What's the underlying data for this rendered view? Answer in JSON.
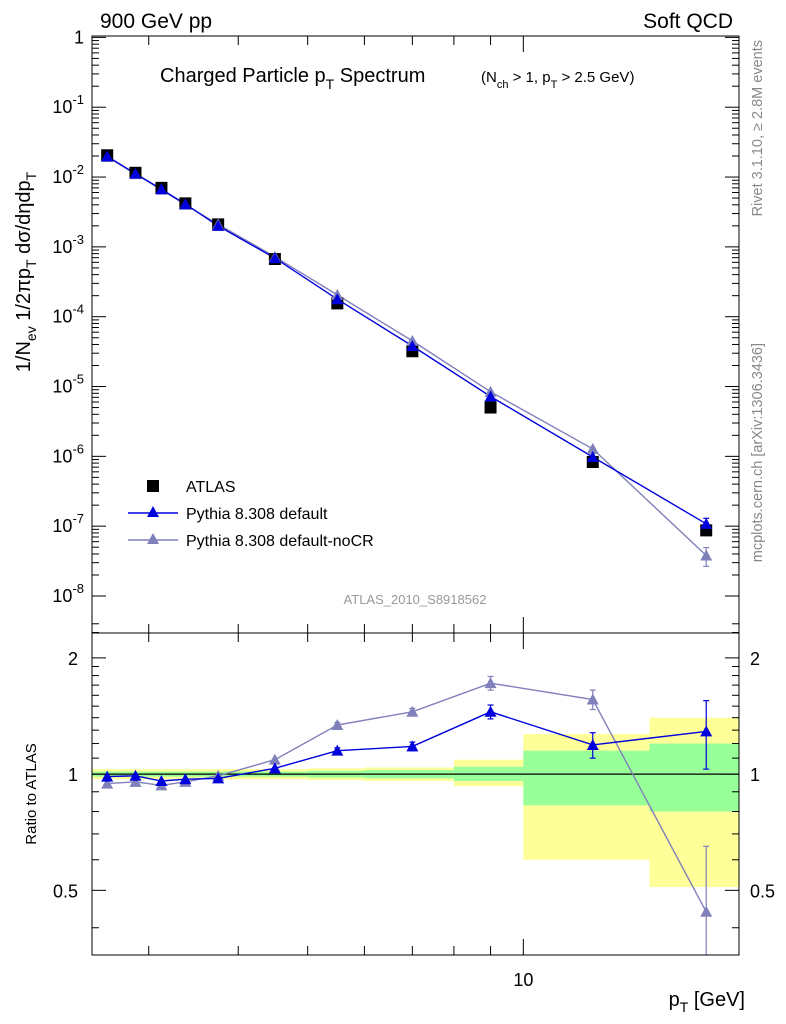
{
  "header": {
    "energy_label": "900 GeV pp",
    "category_label": "Soft QCD"
  },
  "side_labels": {
    "rivet": "Rivet 3.1.10, ≥ 2.8M events",
    "source": "mcplots.cern.ch [arXiv:1306.3436]"
  },
  "chart_data": [
    {
      "type": "scatter",
      "panel": "main",
      "title_main": "Charged Particle p",
      "title_sub": "T",
      "title_tail": " Spectrum",
      "title_cuts": "(N_ch > 1, p_T > 2.5 GeV)",
      "ylabel": "1/N_ev 1/2πp_T dσ/dηdp_T",
      "xlabel": "p_T [GeV]",
      "x_scale": "log",
      "y_scale": "log",
      "xlim": [
        2.5,
        20.0
      ],
      "ylim": [
        3e-09,
        5.0
      ],
      "y_tick_labels": [
        "10^-8",
        "10^-7",
        "10^-6",
        "10^-5",
        "10^-4",
        "10^-3",
        "10^-2",
        "10^-1",
        "1"
      ],
      "x_tick_labels": [
        "10"
      ],
      "analysis_tag": "ATLAS_2010_S8918562",
      "legend_position": "bottom-left",
      "x": [
        2.625,
        2.875,
        3.125,
        3.375,
        3.75,
        4.5,
        5.5,
        7.0,
        9.0,
        12.5,
        18.0
      ],
      "series": [
        {
          "name": "ATLAS",
          "color": "#000000",
          "marker": "square",
          "values": [
            0.0205,
            0.0115,
            0.007,
            0.0042,
            0.0021,
            0.00067,
            0.000155,
            3.2e-05,
            5e-06,
            8.3e-07,
            8.7e-08
          ]
        },
        {
          "name": "Pythia 8.308 default",
          "color": "#0000dd",
          "marker": "triangle",
          "values": [
            0.0198,
            0.0112,
            0.0067,
            0.0041,
            0.002,
            0.00069,
            0.000178,
            3.8e-05,
            7.2e-06,
            9.8e-07,
            1.08e-07
          ]
        },
        {
          "name": "Pythia 8.308 default-noCR",
          "color": "#8080bb",
          "marker": "triangle",
          "values": [
            0.0194,
            0.011,
            0.0066,
            0.004,
            0.0021,
            0.00072,
            0.000205,
            4.5e-05,
            8.4e-06,
            1.28e-06,
            3.8e-08
          ]
        }
      ]
    },
    {
      "type": "line",
      "panel": "ratio",
      "ylabel": "Ratio to ATLAS",
      "x_scale": "log",
      "xlim": [
        2.5,
        20.0
      ],
      "ylim": [
        0.34,
        2.32
      ],
      "y_tick_labels": [
        "0.5",
        "1",
        "2"
      ],
      "x_tick_labels": [
        "10"
      ],
      "x_edges": [
        2.5,
        2.75,
        3.0,
        3.25,
        3.5,
        4.0,
        5.0,
        6.0,
        8.0,
        10.0,
        15.0,
        20.0
      ],
      "uncertainty_band_inner_color": "#99ff99",
      "uncertainty_band_outer_color": "#ffff99",
      "band_inner": [
        [
          0.985,
          1.015
        ],
        [
          0.985,
          1.015
        ],
        [
          0.985,
          1.015
        ],
        [
          0.985,
          1.015
        ],
        [
          0.985,
          1.015
        ],
        [
          0.985,
          1.015
        ],
        [
          0.98,
          1.02
        ],
        [
          0.975,
          1.025
        ],
        [
          0.96,
          1.045
        ],
        [
          0.83,
          1.15
        ],
        [
          0.8,
          1.2
        ]
      ],
      "band_outer": [
        [
          0.97,
          1.03
        ],
        [
          0.97,
          1.03
        ],
        [
          0.97,
          1.03
        ],
        [
          0.97,
          1.03
        ],
        [
          0.97,
          1.03
        ],
        [
          0.97,
          1.03
        ],
        [
          0.965,
          1.035
        ],
        [
          0.96,
          1.04
        ],
        [
          0.93,
          1.09
        ],
        [
          0.6,
          1.27
        ],
        [
          0.51,
          1.4
        ]
      ],
      "x": [
        2.625,
        2.875,
        3.125,
        3.375,
        3.75,
        4.5,
        5.5,
        7.0,
        9.0,
        12.5,
        18.0
      ],
      "series": [
        {
          "name": "Pythia 8.308 default",
          "color": "#0000dd",
          "values": [
            0.985,
            0.99,
            0.96,
            0.97,
            0.975,
            1.035,
            1.15,
            1.18,
            1.45,
            1.19,
            1.29
          ],
          "errors": [
            0.01,
            0.01,
            0.01,
            0.01,
            0.01,
            0.015,
            0.02,
            0.03,
            0.06,
            0.09,
            0.26
          ]
        },
        {
          "name": "Pythia 8.308 default-noCR",
          "color": "#8080bb",
          "values": [
            0.945,
            0.955,
            0.935,
            0.955,
            0.99,
            1.09,
            1.34,
            1.45,
            1.72,
            1.56,
            0.44
          ],
          "errors": [
            0.01,
            0.01,
            0.01,
            0.01,
            0.01,
            0.015,
            0.02,
            0.03,
            0.07,
            0.09,
            0.21
          ]
        }
      ]
    }
  ]
}
